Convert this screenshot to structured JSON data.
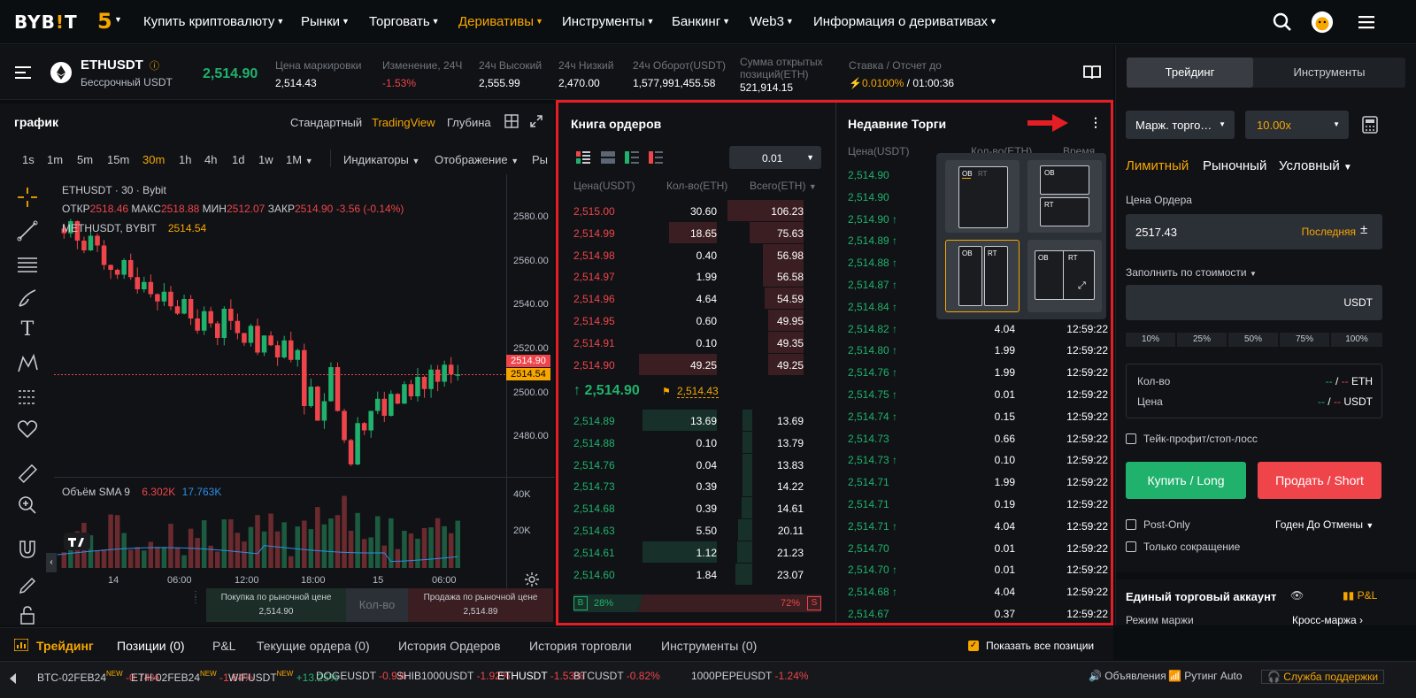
{
  "header": {
    "logo": "BYB!T",
    "anniversary_badge": "5",
    "nav": [
      "Купить криптовалюту",
      "Рынки",
      "Торговать",
      "Деривативы",
      "Инструменты",
      "Банкинг",
      "Web3",
      "Информация о деривативах"
    ]
  },
  "ticker": {
    "symbol": "ETHUSDT",
    "subtitle": "Бессрочный USDT",
    "last_price": "2,514.90",
    "stats": [
      {
        "label": "Цена маркировки",
        "value": "2,514.43"
      },
      {
        "label": "Изменение, 24Ч",
        "value": "-1.53%"
      },
      {
        "label": "24ч Высокий",
        "value": "2,555.99"
      },
      {
        "label": "24ч Низкий",
        "value": "2,470.00"
      },
      {
        "label": "24ч Оборот(USDT)",
        "value": "1,577,991,455.58"
      },
      {
        "label": "Сумма открытых позиций(ETH)",
        "value": "521,914.15"
      },
      {
        "label": "Ставка / Отсчет до",
        "value": "0.0100%",
        "value2": "/ 01:00:36"
      }
    ]
  },
  "chart": {
    "title": "график",
    "views": [
      "Стандартный",
      "TradingView",
      "Глубина"
    ],
    "timeframes": [
      "1s",
      "1m",
      "5m",
      "15m",
      "30m",
      "1h",
      "4h",
      "1d",
      "1w",
      "1M"
    ],
    "indicators_label": "Индикаторы",
    "display_label": "Отображение",
    "last_tool": "Ры",
    "legend_symbol": "ETHUSDT · 30 · Bybit",
    "ohlc": {
      "o_label": "ОТКР",
      "o": "2518.46",
      "h_label": "МАКС",
      "h": "2518.88",
      "l_label": "МИН",
      "l": "2512.07",
      "c_label": "ЗАКР",
      "c": "2514.90",
      "chg": "-3.56 (-0.14%)"
    },
    "mark_label": "METHUSDT, BYBIT",
    "mark_value": "2514.54",
    "price_ticks": [
      "2580.00",
      "2560.00",
      "2540.00",
      "2520.00",
      "2500.00",
      "2480.00"
    ],
    "last_price_tag": "2514.90",
    "mark_price_tag": "2514.54",
    "volume_label": "Объём SMA 9",
    "volume_v1": "6.302K",
    "volume_v2": "17.763K",
    "volume_ticks": [
      "40K",
      "20K"
    ],
    "time_ticks": [
      "14",
      "06:00",
      "12:00",
      "18:00",
      "15",
      "06:00"
    ],
    "buy_market": "Покупка по рыночной цене",
    "buy_price": "2,514.90",
    "qty_placeholder": "Кол-во",
    "sell_market": "Продажа по рыночной цене",
    "sell_price": "2,514.89"
  },
  "chart_data": {
    "type": "candlestick",
    "title": "",
    "ylim": [
      2470,
      2590
    ],
    "note": "",
    "ohlc_series": [
      2575,
      2573,
      2578,
      2570,
      2566,
      2572,
      2568,
      2560,
      2558,
      2556,
      2562,
      2555,
      2550,
      2553,
      2548,
      2545,
      2549,
      2543,
      2540,
      2546,
      2538,
      2533,
      2541,
      2536,
      2530,
      2542,
      2537,
      2532,
      2528,
      2535,
      2524,
      2531,
      2527,
      2522,
      2529,
      2521,
      2525,
      2502,
      2510,
      2496,
      2504,
      2518,
      2500,
      2488,
      2478,
      2495,
      2492,
      2500,
      2505,
      2498,
      2507,
      2503,
      2511,
      2506,
      2514,
      2509,
      2517,
      2512,
      2519,
      2515,
      2515
    ]
  },
  "orderbook": {
    "title": "Книга ордеров",
    "precision": "0.01",
    "headers": [
      "Цена(USDT)",
      "Кол-во(ETH)",
      "Всего(ETH)"
    ],
    "asks": [
      {
        "p": "2,515.00",
        "q": "30.60",
        "t": "106.23",
        "depth": 1.0,
        "size": 0.0
      },
      {
        "p": "2,514.99",
        "q": "18.65",
        "t": "75.63",
        "depth": 0.71,
        "size": 0.61
      },
      {
        "p": "2,514.98",
        "q": "0.40",
        "t": "56.98",
        "depth": 0.54,
        "size": 0.0
      },
      {
        "p": "2,514.97",
        "q": "1.99",
        "t": "56.58",
        "depth": 0.53,
        "size": 0.0
      },
      {
        "p": "2,514.96",
        "q": "4.64",
        "t": "54.59",
        "depth": 0.51,
        "size": 0.0
      },
      {
        "p": "2,514.95",
        "q": "0.60",
        "t": "49.95",
        "depth": 0.47,
        "size": 0.0
      },
      {
        "p": "2,514.91",
        "q": "0.10",
        "t": "49.35",
        "depth": 0.46,
        "size": 0.0
      },
      {
        "p": "2,514.90",
        "q": "49.25",
        "t": "49.25",
        "depth": 0.46,
        "size": 1.0
      }
    ],
    "mid_price": "2,514.90",
    "mark_price": "2,514.43",
    "bids": [
      {
        "p": "2,514.89",
        "q": "13.69",
        "t": "13.69",
        "depth": 0.13,
        "size": 0.95
      },
      {
        "p": "2,514.88",
        "q": "0.10",
        "t": "13.79",
        "depth": 0.13,
        "size": 0.0
      },
      {
        "p": "2,514.76",
        "q": "0.04",
        "t": "13.83",
        "depth": 0.13,
        "size": 0.0
      },
      {
        "p": "2,514.73",
        "q": "0.39",
        "t": "14.22",
        "depth": 0.13,
        "size": 0.0
      },
      {
        "p": "2,514.68",
        "q": "0.39",
        "t": "14.61",
        "depth": 0.14,
        "size": 0.0
      },
      {
        "p": "2,514.63",
        "q": "5.50",
        "t": "20.11",
        "depth": 0.19,
        "size": 0.0
      },
      {
        "p": "2,514.61",
        "q": "1.12",
        "t": "21.23",
        "depth": 0.2,
        "size": 0.95
      },
      {
        "p": "2,514.60",
        "q": "1.84",
        "t": "23.07",
        "depth": 0.22,
        "size": 0.0
      }
    ],
    "buy_label": "B",
    "buy_pct": "28%",
    "sell_pct": "72%",
    "sell_label": "S",
    "buy_ratio": 0.28
  },
  "trades": {
    "title": "Недавние Торги",
    "headers": [
      "Цена(USDT)",
      "Кол-во(ETH)",
      "Время"
    ],
    "rows": [
      {
        "p": "2,514.90",
        "q": "",
        "t": "",
        "arrow": ""
      },
      {
        "p": "2,514.90",
        "q": "",
        "t": "",
        "arrow": ""
      },
      {
        "p": "2,514.90",
        "q": "",
        "t": "",
        "arrow": "↑"
      },
      {
        "p": "2,514.89",
        "q": "",
        "t": "",
        "arrow": "↑"
      },
      {
        "p": "2,514.88",
        "q": "",
        "t": "",
        "arrow": "↑"
      },
      {
        "p": "2,514.87",
        "q": "",
        "t": "",
        "arrow": "↑"
      },
      {
        "p": "2,514.84",
        "q": "",
        "t": "",
        "arrow": "↑"
      },
      {
        "p": "2,514.82",
        "q": "4.04",
        "t": "12:59:22",
        "arrow": "↑"
      },
      {
        "p": "2,514.80",
        "q": "1.99",
        "t": "12:59:22",
        "arrow": "↑"
      },
      {
        "p": "2,514.76",
        "q": "1.99",
        "t": "12:59:22",
        "arrow": "↑"
      },
      {
        "p": "2,514.75",
        "q": "0.01",
        "t": "12:59:22",
        "arrow": "↑"
      },
      {
        "p": "2,514.74",
        "q": "0.15",
        "t": "12:59:22",
        "arrow": "↑"
      },
      {
        "p": "2,514.73",
        "q": "0.66",
        "t": "12:59:22",
        "arrow": ""
      },
      {
        "p": "2,514.73",
        "q": "0.10",
        "t": "12:59:22",
        "arrow": "↑"
      },
      {
        "p": "2,514.71",
        "q": "1.99",
        "t": "12:59:22",
        "arrow": ""
      },
      {
        "p": "2,514.71",
        "q": "0.19",
        "t": "12:59:22",
        "arrow": ""
      },
      {
        "p": "2,514.71",
        "q": "4.04",
        "t": "12:59:22",
        "arrow": "↑"
      },
      {
        "p": "2,514.70",
        "q": "0.01",
        "t": "12:59:22",
        "arrow": ""
      },
      {
        "p": "2,514.70",
        "q": "0.01",
        "t": "12:59:22",
        "arrow": "↑"
      },
      {
        "p": "2,514.68",
        "q": "4.04",
        "t": "12:59:22",
        "arrow": "↑"
      },
      {
        "p": "2,514.67",
        "q": "0.37",
        "t": "12:59:22",
        "arrow": ""
      }
    ],
    "layout_ob": "OB",
    "layout_rt": "RT"
  },
  "rightpanel": {
    "tabs": [
      "Трейдинг",
      "Инструменты"
    ],
    "margin_mode": "Марж. торго…",
    "leverage": "10.00x",
    "order_types": [
      "Лимитный",
      "Рыночный",
      "Условный"
    ],
    "order_price_label": "Цена Ордера",
    "order_price": "2517.43",
    "last_btn": "Последняя",
    "fill_by_value": "Заполнить по стоимости",
    "currency": "USDT",
    "percents": [
      "10%",
      "25%",
      "50%",
      "75%",
      "100%"
    ],
    "qty_label": "Кол-во",
    "qty_value": "-- / --",
    "qty_unit": "ETH",
    "price_label": "Цена",
    "price_value": "-- / --",
    "price_unit": "USDT",
    "tpsl": "Тейк-профит/стоп-лосс",
    "buy_btn": "Купить / Long",
    "sell_btn": "Продать / Short",
    "post_only": "Post-Only",
    "tif": "Годен До Отмены",
    "reduce_only": "Только сокращение",
    "unified": "Единый торговый аккаунт",
    "pnl": "P&L",
    "margin_mode_label": "Режим маржи",
    "margin_mode_value": "Кросс-маржа"
  },
  "bottom_tabs": {
    "items": [
      "Трейдинг",
      "Позиции (0)",
      "P&L",
      "Текущие ордера (0)",
      "История Ордеров",
      "История торговли",
      "Инструменты (0)"
    ],
    "show_all": "Показать все позиции"
  },
  "marquee": {
    "items": [
      {
        "s": "BTC-02FEB24",
        "new": "NEW",
        "c": "-0.74%",
        "up": false
      },
      {
        "s": "ETH-02FEB24",
        "new": "NEW",
        "c": "-1.64%",
        "up": false
      },
      {
        "s": "WIFUSDT",
        "new": "NEW",
        "c": "+13.25%",
        "up": true
      },
      {
        "s": "DOGEUSDT",
        "new": "",
        "c": "-0.9%",
        "up": false
      },
      {
        "s": "SHIB1000USDT",
        "new": "",
        "c": "-1.92%",
        "up": false
      },
      {
        "s": "ETHUSDT",
        "new": "",
        "c": "-1.53%",
        "up": false
      },
      {
        "s": "BTCUSDT",
        "new": "",
        "c": "-0.82%",
        "up": false
      },
      {
        "s": "1000PEPEUSDT",
        "new": "",
        "c": "-1.24%",
        "up": false
      }
    ],
    "announcements": "Объявления",
    "routing": "Рутинг Auto",
    "support": "Служба поддержки"
  },
  "colors": {
    "accent": "#f7a600",
    "buy": "#20b26c",
    "sell": "#ef454a",
    "highlight": "#e51d24"
  }
}
